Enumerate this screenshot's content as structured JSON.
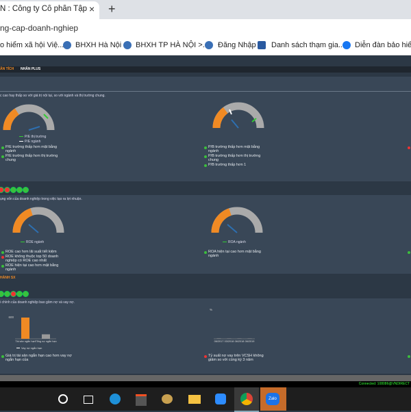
{
  "browser": {
    "tab_title": "N : Công ty Cổ phần Tập đoàn",
    "url": "ng-cap-doanh-nghiep",
    "bookmarks": [
      "o hiểm xã hội Việ...",
      "BHXH Hà Nội",
      "BHXH TP HÀ NỘI >...",
      "Đăng Nhập",
      "Danh sách thạm gia...",
      "Diễn đàn bảo hiểm..."
    ]
  },
  "dashboard": {
    "nav": [
      "ÂN TÍCH",
      "NHÂN PLUS"
    ],
    "sections": [
      {
        "description": "c cao hay thấp so với giá trị nội tại, so với ngành và thị trường chung.",
        "left": {
          "legend": [
            "P/E thị trường",
            "P/E ngành"
          ],
          "bullets": [
            "P/E trường thấp hơn mặt bằng ngành",
            "P/E trường thấp hơn thị trường chung"
          ]
        },
        "right": {
          "bullets": [
            "P/B trường thấp hơn mặt bằng ngành",
            "P/B trường thấp hơn thị trường chung",
            "P/B trường thấp hơn 1"
          ]
        }
      },
      {
        "description": "ụng vốn của doanh nghiệp trong việc tạo ra lợi nhuận.",
        "left": {
          "legend": [
            "ROE ngành"
          ],
          "bullets": [
            "ROE cao hơn lãi suất tiết kiệm",
            "ROE không thuộc top 50 doanh nghiệp có ROE cao nhất",
            "ROE hiện tại cao hơn mặt bằng ngành"
          ]
        },
        "right": {
          "legend": [
            "ROA ngành"
          ],
          "bullets": [
            "ROA hiện tại cao hơn mặt bằng ngành"
          ]
        }
      },
      {
        "label": "HÀNH SX",
        "description": "i chính của doanh nghiệp bao gồm nợ và vay nợ.",
        "left": {
          "chart": {
            "type": "bar",
            "categories": [
              "Tài sản ngắn hạn",
              "Tổng nợ ngắn hạn"
            ],
            "values": [
              620,
              130
            ],
            "color": "#f08a24",
            "ylim": [
              0,
              700
            ],
            "yticks": [
              600
            ],
            "legend": "Vay nợ ngắn hạn"
          },
          "bullets": [
            "Giá trị tài sản ngắn hạn cao hơn vay nợ ngắn hạn của"
          ]
        },
        "right": {
          "chart": {
            "type": "bar",
            "categories": [
              "06/2017",
              "03/2018",
              "06/2018",
              "06/2019"
            ],
            "values": [
              1,
              1,
              1,
              1
            ],
            "color": "#aaaaaa",
            "ylim": [
              0,
              100
            ],
            "yticks": [
              "%"
            ]
          },
          "bullets": [
            "Tỷ suất nợ vay trên VCSH không giảm so với cùng kỳ 3 năm"
          ]
        }
      }
    ],
    "status": "Connected: 108086@VNDIRECT"
  }
}
